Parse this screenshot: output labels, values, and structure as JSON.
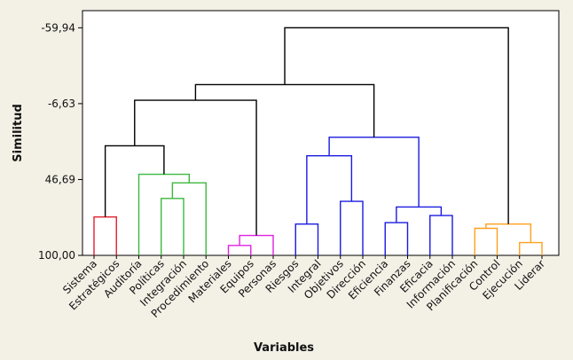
{
  "chart_data": {
    "type": "dendrogram",
    "xlabel": "Variables",
    "ylabel": "Similitud",
    "y_ticks": [
      "-59,94",
      "-6,63",
      "46,69",
      "100,00"
    ],
    "y_tick_values": [
      -59.94,
      -6.63,
      46.69,
      100.0
    ],
    "ylim": [
      -72,
      100
    ],
    "leaves": [
      "Sistema",
      "Estratégicos",
      "Auditoría",
      "Políticas",
      "Integración",
      "Procedimiento",
      "Materiales",
      "Equipos",
      "Personas",
      "Riesgos",
      "Integral",
      "Objetivos",
      "Dirección",
      "Eficiencia",
      "Finanzas",
      "Eficacia",
      "Información",
      "Planificación",
      "Control",
      "Ejecución",
      "Liderar"
    ],
    "merges": [
      {
        "id": "m1",
        "left": "Sistema",
        "right": "Estratégicos",
        "height": 73,
        "color": "#e0202e"
      },
      {
        "id": "m2",
        "left": "Políticas",
        "right": "Integración",
        "height": 60,
        "color": "#3cb83c"
      },
      {
        "id": "m3",
        "left": "m2",
        "right": "Procedimiento",
        "height": 49,
        "color": "#3cb83c"
      },
      {
        "id": "m4",
        "left": "Auditoría",
        "right": "m3",
        "height": 43,
        "color": "#3cb83c"
      },
      {
        "id": "m5",
        "left": "m1",
        "right": "m4",
        "height": 23,
        "color": "#000000"
      },
      {
        "id": "m6",
        "left": "Materiales",
        "right": "Equipos",
        "height": 93,
        "color": "#e020e0"
      },
      {
        "id": "m7",
        "left": "m6",
        "right": "Personas",
        "height": 86,
        "color": "#e020e0"
      },
      {
        "id": "m8",
        "left": "m5",
        "right": "m7",
        "height": -9,
        "color": "#000000"
      },
      {
        "id": "m9",
        "left": "Riesgos",
        "right": "Integral",
        "height": 78,
        "color": "#1a1ae0"
      },
      {
        "id": "m10",
        "left": "Objetivos",
        "right": "Dirección",
        "height": 62,
        "color": "#1a1ae0"
      },
      {
        "id": "m11",
        "left": "m9",
        "right": "m10",
        "height": 30,
        "color": "#1a1ae0"
      },
      {
        "id": "m12",
        "left": "Eficiencia",
        "right": "Finanzas",
        "height": 77,
        "color": "#1a1ae0"
      },
      {
        "id": "m13",
        "left": "Eficacia",
        "right": "Información",
        "height": 72,
        "color": "#1a1ae0"
      },
      {
        "id": "m14",
        "left": "m12",
        "right": "m13",
        "height": 66,
        "color": "#1a1ae0"
      },
      {
        "id": "m15",
        "left": "m11",
        "right": "m14",
        "height": 17,
        "color": "#1a1ae0"
      },
      {
        "id": "m16",
        "left": "m8",
        "right": "m15",
        "height": -20,
        "color": "#000000"
      },
      {
        "id": "m17",
        "left": "Planificación",
        "right": "Control",
        "height": 81,
        "color": "#ffa020"
      },
      {
        "id": "m18",
        "left": "Ejecución",
        "right": "Liderar",
        "height": 91,
        "color": "#ffa020"
      },
      {
        "id": "m19",
        "left": "m17",
        "right": "m18",
        "height": 78,
        "color": "#ffa020"
      },
      {
        "id": "m20",
        "left": "m16",
        "right": "m19",
        "height": -59.94,
        "color": "#000000"
      }
    ]
  }
}
